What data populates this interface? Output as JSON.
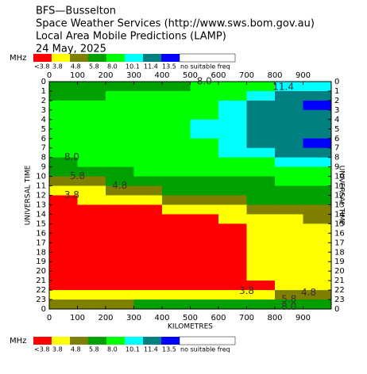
{
  "chart_data": {
    "type": "contour",
    "title_lines": [
      "BFS—Busselton",
      "Space Weather Services (http://www.sws.bom.gov.au)",
      "Local Area Mobile Predictions (LAMP)",
      "24 May, 2025"
    ],
    "legend_unit": "MHz",
    "legend_labels": [
      "<3.8",
      "3.8",
      "4.8",
      "5.8",
      "8.0",
      "10.1",
      "11.4",
      "13.5",
      "no suitable freq"
    ],
    "levels": [
      3.8,
      4.8,
      5.8,
      8.0,
      10.1,
      11.4,
      13.5
    ],
    "colors": [
      "#ff0000",
      "#ffff00",
      "#808000",
      "#00a000",
      "#00ff00",
      "#00ffff",
      "#008080",
      "#0000ff",
      "#ffffff"
    ],
    "xlabel": "KILOMETRES",
    "ylabel": "UNIVERSAL TIME",
    "xlim": [
      0,
      1000
    ],
    "xticks": [
      0,
      100,
      200,
      300,
      400,
      500,
      600,
      700,
      800,
      900
    ],
    "ylim": [
      0,
      24
    ],
    "yticks": [
      0,
      1,
      2,
      3,
      4,
      5,
      6,
      7,
      8,
      9,
      10,
      11,
      12,
      13,
      14,
      15,
      16,
      17,
      18,
      19,
      20,
      21,
      22,
      23,
      {
        "value": 24,
        "label": "0"
      }
    ],
    "x": [
      50,
      150,
      250,
      350,
      450,
      550,
      650,
      750,
      850,
      950
    ],
    "y": [
      0.5,
      1.5,
      2.5,
      3.5,
      4.5,
      5.5,
      6.5,
      7.5,
      8.5,
      9.5,
      10.5,
      11.5,
      12.5,
      13.5,
      14.5,
      15.5,
      16.5,
      17.5,
      18.5,
      19.5,
      20.5,
      21.5,
      22.5,
      23.5
    ],
    "z": [
      [
        7,
        7,
        7,
        7,
        7,
        9,
        9,
        9,
        10.8,
        10.8
      ],
      [
        7,
        7,
        9,
        9,
        9,
        9,
        9,
        10.8,
        12.5,
        12.5
      ],
      [
        9,
        9,
        9,
        9,
        9,
        9,
        10.8,
        12.5,
        12.5,
        14
      ],
      [
        9,
        9,
        9,
        9,
        9,
        9,
        10.8,
        12.5,
        12.5,
        12.5
      ],
      [
        9,
        9,
        9,
        9,
        9,
        10.8,
        10.8,
        12.5,
        12.5,
        12.5
      ],
      [
        9,
        9,
        9,
        9,
        9,
        10.8,
        10.8,
        12.5,
        12.5,
        12.5
      ],
      [
        9,
        9,
        9,
        9,
        9,
        9,
        10.8,
        12.5,
        12.5,
        14
      ],
      [
        9,
        9,
        9,
        9,
        9,
        9,
        10.8,
        10.8,
        12.5,
        12.5
      ],
      [
        7,
        9,
        9,
        9,
        9,
        9,
        9,
        9,
        10.8,
        10.8
      ],
      [
        7,
        7,
        7,
        9,
        9,
        9,
        9,
        9,
        9,
        9
      ],
      [
        5.3,
        5.3,
        7,
        7,
        7,
        7,
        7,
        7,
        9,
        9
      ],
      [
        4.3,
        4.3,
        5.3,
        5.3,
        7,
        7,
        7,
        7,
        7,
        7
      ],
      [
        3,
        4.3,
        4.3,
        4.3,
        5.3,
        5.3,
        5.3,
        7,
        7,
        7
      ],
      [
        3,
        3,
        3,
        3,
        4.3,
        4.3,
        4.3,
        5.3,
        5.3,
        5.3
      ],
      [
        3,
        3,
        3,
        3,
        3,
        3,
        4.3,
        4.3,
        4.3,
        5.3
      ],
      [
        3,
        3,
        3,
        3,
        3,
        3,
        3,
        4.3,
        4.3,
        4.3
      ],
      [
        3,
        3,
        3,
        3,
        3,
        3,
        3,
        4.3,
        4.3,
        4.3
      ],
      [
        3,
        3,
        3,
        3,
        3,
        3,
        3,
        4.3,
        4.3,
        4.3
      ],
      [
        3,
        3,
        3,
        3,
        3,
        3,
        3,
        4.3,
        4.3,
        4.3
      ],
      [
        3,
        3,
        3,
        3,
        3,
        3,
        3,
        4.3,
        4.3,
        4.3
      ],
      [
        3,
        3,
        3,
        3,
        3,
        3,
        3,
        4.3,
        4.3,
        4.3
      ],
      [
        3,
        3,
        3,
        3,
        3,
        3,
        3,
        3,
        4.3,
        4.3
      ],
      [
        4.3,
        4.3,
        4.3,
        4.3,
        4.3,
        4.3,
        4.3,
        4.3,
        5.3,
        5.3
      ],
      [
        5.3,
        5.3,
        5.3,
        7,
        7,
        7,
        7,
        7,
        7,
        7
      ]
    ],
    "annotations": [
      {
        "text": "8.0",
        "x": 550,
        "y": 0
      },
      {
        "text": "11.4",
        "x": 830,
        "y": 0.6
      },
      {
        "text": "8.0",
        "x": 80,
        "y": 8
      },
      {
        "text": "5.8",
        "x": 100,
        "y": 10
      },
      {
        "text": "4.8",
        "x": 250,
        "y": 11
      },
      {
        "text": "3.8",
        "x": 80,
        "y": 12
      },
      {
        "text": "3.8",
        "x": 700,
        "y": 22.1
      },
      {
        "text": "4.8",
        "x": 920,
        "y": 22.3
      },
      {
        "text": "5.8",
        "x": 850,
        "y": 23
      },
      {
        "text": "8.0",
        "x": 850,
        "y": 23.8
      }
    ]
  }
}
